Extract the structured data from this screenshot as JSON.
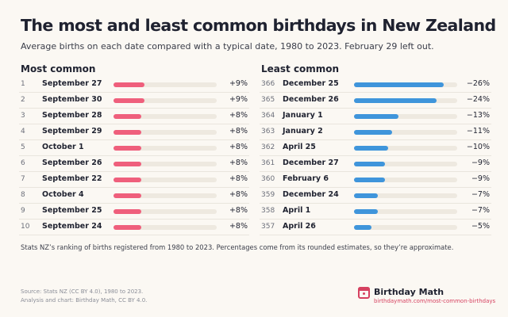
{
  "title": "The most and least common birthdays in New Zealand",
  "subtitle": "Average births on each date compared with a typical date, 1980 to 2023. February 29 left out.",
  "colors": {
    "most": "#ef5f7c",
    "least": "#3f95db",
    "track": "#eee9e0",
    "brand": "#d64160"
  },
  "chart_data": [
    {
      "type": "bar",
      "title": "Most common",
      "orientation": "horizontal",
      "xlim": [
        0,
        30
      ],
      "ranks": [
        "1",
        "2",
        "3",
        "4",
        "5",
        "6",
        "7",
        "8",
        "9",
        "10"
      ],
      "categories": [
        "September 27",
        "September 30",
        "September 28",
        "September 29",
        "October 1",
        "September 26",
        "September 22",
        "October 4",
        "September 25",
        "September 24"
      ],
      "values": [
        9,
        9,
        8,
        8,
        8,
        8,
        8,
        8,
        8,
        8
      ],
      "labels": [
        "+9%",
        "+9%",
        "+8%",
        "+8%",
        "+8%",
        "+8%",
        "+8%",
        "+8%",
        "+8%",
        "+8%"
      ]
    },
    {
      "type": "bar",
      "title": "Least common",
      "orientation": "horizontal",
      "xlim": [
        0,
        30
      ],
      "ranks": [
        "366",
        "365",
        "364",
        "363",
        "362",
        "361",
        "360",
        "359",
        "358",
        "357"
      ],
      "categories": [
        "December 25",
        "December 26",
        "January 1",
        "January 2",
        "April 25",
        "December 27",
        "February 6",
        "December 24",
        "April 1",
        "April 26"
      ],
      "values": [
        -26,
        -24,
        -13,
        -11,
        -10,
        -9,
        -9,
        -7,
        -7,
        -5
      ],
      "labels": [
        "−26%",
        "−24%",
        "−13%",
        "−11%",
        "−10%",
        "−9%",
        "−9%",
        "−7%",
        "−7%",
        "−5%"
      ]
    }
  ],
  "note": "Stats NZ’s ranking of births registered from 1980 to 2023. Percentages come from its rounded estimates, so they’re approximate.",
  "source": {
    "line1": "Source: Stats NZ (CC BY 4.0), 1980 to 2023.",
    "line2": "Analysis and chart: Birthday Math, CC BY 4.0."
  },
  "brand": {
    "icon": "calendar-icon",
    "name": "Birthday Math",
    "url": "birthdaymath.com/most-common-birthdays"
  }
}
